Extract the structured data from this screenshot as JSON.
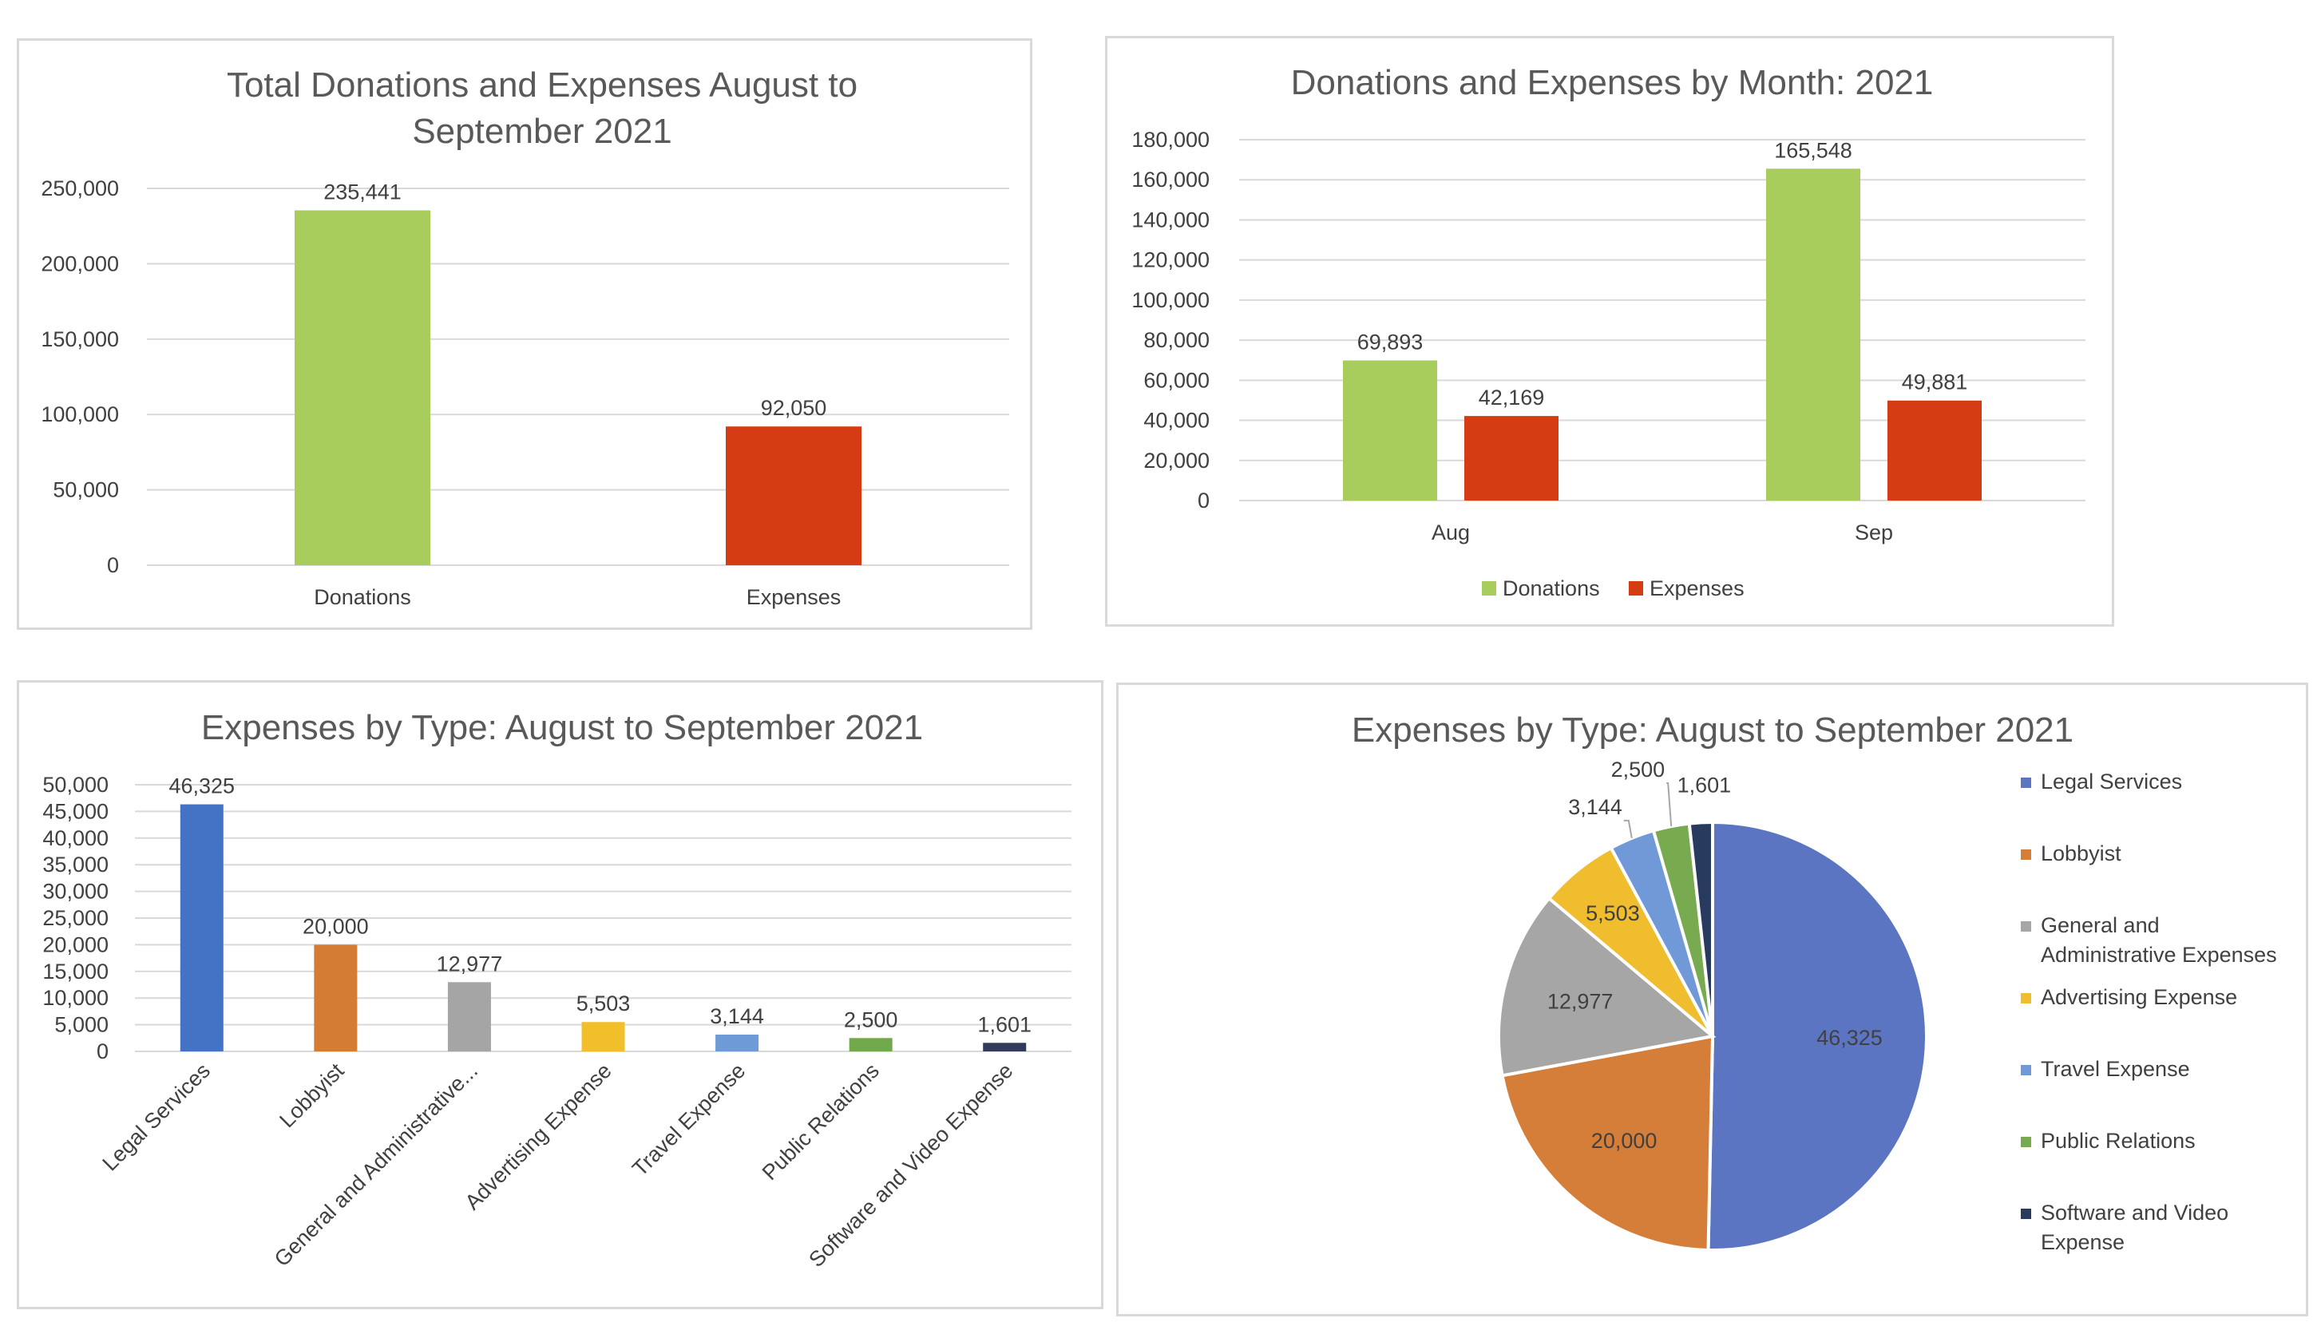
{
  "chart_data": [
    {
      "type": "bar",
      "title": "Total Donations and Expenses August to September 2021",
      "title_lines": [
        "Total Donations and Expenses August to",
        "September 2021"
      ],
      "categories": [
        "Donations",
        "Expenses"
      ],
      "values": [
        235441,
        92050
      ],
      "value_labels": [
        "235,441",
        "92,050"
      ],
      "colors": [
        "#a9cd5c",
        "#d63c13"
      ],
      "ylim": [
        0,
        250000
      ],
      "yticks": [
        "0",
        "50,000",
        "100,000",
        "150,000",
        "200,000",
        "250,000"
      ],
      "grid": true,
      "legend": "none"
    },
    {
      "type": "bar",
      "title": "Donations and Expenses by Month: 2021",
      "categories": [
        "Aug",
        "Sep"
      ],
      "series": [
        {
          "name": "Donations",
          "values": [
            69893,
            165548
          ],
          "value_labels": [
            "69,893",
            "165,548"
          ],
          "color": "#a9cd5c"
        },
        {
          "name": "Expenses",
          "values": [
            42169,
            49881
          ],
          "value_labels": [
            "42,169",
            "49,881"
          ],
          "color": "#d63c13"
        }
      ],
      "ylim": [
        0,
        180000
      ],
      "yticks": [
        "0",
        "20,000",
        "40,000",
        "60,000",
        "80,000",
        "100,000",
        "120,000",
        "140,000",
        "160,000",
        "180,000"
      ],
      "grid": true,
      "legend": "bottom"
    },
    {
      "type": "bar",
      "title": "Expenses by Type: August to September 2021",
      "categories": [
        "Legal Services",
        "Lobbyist",
        "General and Administrative...",
        "Advertising Expense",
        "Travel Expense",
        "Public Relations",
        "Software and Video Expense"
      ],
      "values": [
        46325,
        20000,
        12977,
        5503,
        3144,
        2500,
        1601
      ],
      "value_labels": [
        "46,325",
        "20,000",
        "12,977",
        "5,503",
        "3,144",
        "2,500",
        "1,601"
      ],
      "colors": [
        "#4472c4",
        "#d47b34",
        "#a5a5a5",
        "#f0bf2a",
        "#6f9ad8",
        "#70a84a",
        "#313b59"
      ],
      "ylim": [
        0,
        50000
      ],
      "yticks": [
        "0",
        "5,000",
        "10,000",
        "15,000",
        "20,000",
        "25,000",
        "30,000",
        "35,000",
        "40,000",
        "45,000",
        "50,000"
      ],
      "grid": true,
      "legend": "none"
    },
    {
      "type": "pie",
      "title": "Expenses by Type: August to September 2021",
      "labels": [
        "Legal Services",
        "Lobbyist",
        "General and Administrative Expenses",
        "Advertising Expense",
        "Travel Expense",
        "Public Relations",
        "Software and Video Expense"
      ],
      "legend_lines": [
        [
          "Legal Services"
        ],
        [
          "Lobbyist"
        ],
        [
          "General and",
          "Administrative Expenses"
        ],
        [
          "Advertising Expense"
        ],
        [
          "Travel Expense"
        ],
        [
          "Public Relations"
        ],
        [
          "Software and Video",
          "Expense"
        ]
      ],
      "values": [
        46325,
        20000,
        12977,
        5503,
        3144,
        2500,
        1601
      ],
      "value_labels": [
        "46,325",
        "20,000",
        "12,977",
        "5,503",
        "3,144",
        "2,500",
        "1,601"
      ],
      "colors": [
        "#5b75c2",
        "#d47e39",
        "#a6a6a6",
        "#efbd2d",
        "#7198d7",
        "#78aa4f",
        "#283a5e"
      ],
      "legend": "right"
    }
  ]
}
